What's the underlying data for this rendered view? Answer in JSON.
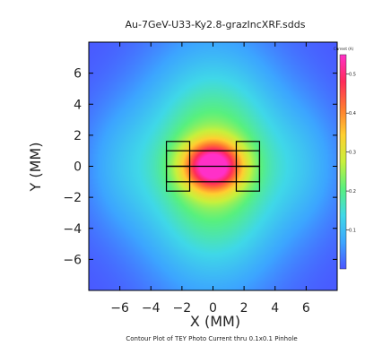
{
  "chart_data": {
    "type": "heatmap",
    "title": "Au-7GeV-U33-Ky2.8-grazIncXRF.sdds",
    "xlabel": "X (MM)",
    "ylabel": "Y (MM)",
    "caption": "Contour Plot of TEY Photo Current thru 0.1x0.1 Pinhole",
    "xlim": [
      -8,
      8
    ],
    "ylim": [
      -8,
      8
    ],
    "x_ticks": [
      -6,
      -4,
      -2,
      0,
      2,
      4,
      6
    ],
    "y_ticks": [
      6,
      4,
      2,
      0,
      -2,
      -4,
      -6
    ],
    "colorbar": {
      "units_label": "Current (A)",
      "range": [
        0.0,
        0.55
      ],
      "ticks": [
        {
          "value": 0.5,
          "label": "0.5"
        },
        {
          "value": 0.4,
          "label": "0.4"
        },
        {
          "value": 0.3,
          "label": "0.3"
        },
        {
          "value": 0.2,
          "label": "0.2"
        },
        {
          "value": 0.1,
          "label": "0.1"
        }
      ],
      "colors": [
        "#4a55ff",
        "#3ca5ff",
        "#3fd8e8",
        "#58f07e",
        "#c8f03c",
        "#ffd030",
        "#ff7a30",
        "#ff2a5a",
        "#ff30c8"
      ]
    },
    "field": {
      "peak_value": 0.55,
      "peak_x": 0.0,
      "peak_y": 0.0,
      "sigma_x_core": 1.3,
      "sigma_y_core": 1.1,
      "background_value": 0.18
    },
    "annotations": {
      "rectangles_mm": [
        {
          "x0": -3.0,
          "x1": -1.5,
          "y0": 0.0,
          "y1": 1.6
        },
        {
          "x0": -3.0,
          "x1": -1.5,
          "y0": -1.6,
          "y1": 0.0
        },
        {
          "x0": 1.5,
          "x1": 3.0,
          "y0": 0.0,
          "y1": 1.6
        },
        {
          "x0": 1.5,
          "x1": 3.0,
          "y0": -1.6,
          "y1": 0.0
        },
        {
          "x0": -3.0,
          "x1": 3.0,
          "y0": -1.0,
          "y1": 1.0
        }
      ],
      "divider_y_mm": 0.0
    }
  }
}
